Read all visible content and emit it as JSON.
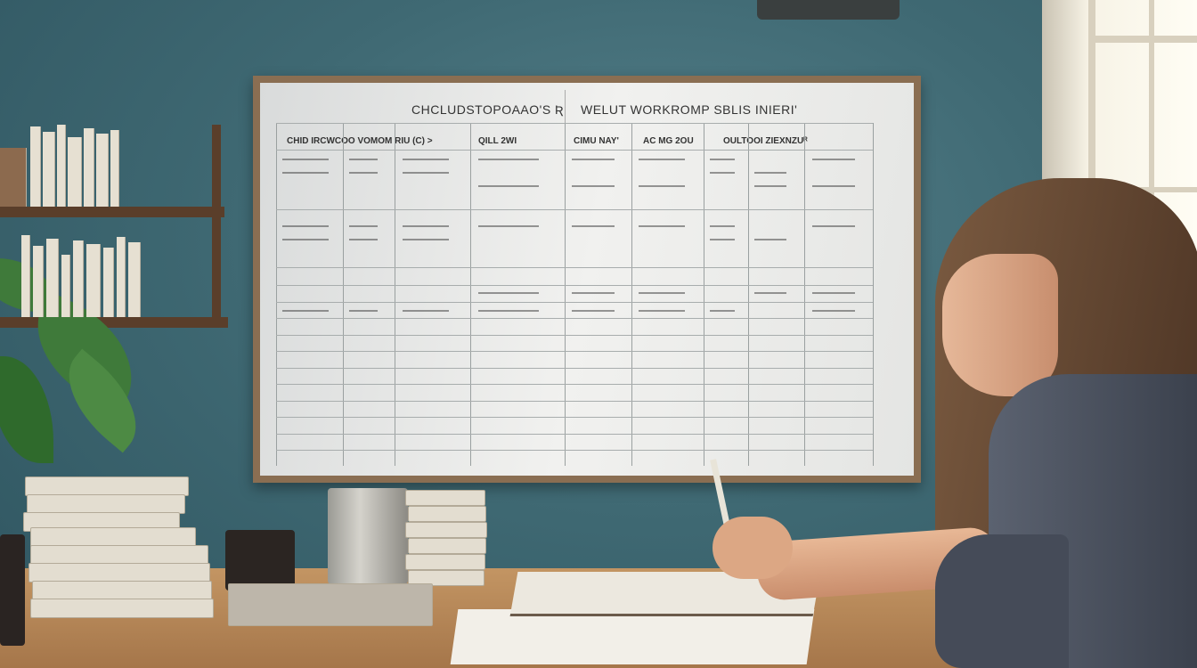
{
  "scene": {
    "description_tags": [
      "wall",
      "window",
      "whiteboard",
      "bookshelf",
      "plant",
      "desk",
      "student"
    ],
    "colors": {
      "wall": "#3f6973",
      "board_frame": "#8a6e52",
      "desk": "#b98a5a",
      "shirt": "#454b58"
    }
  },
  "whiteboard": {
    "title_left": "CHCLUDSTOPOAAO'S Ʀ",
    "title_right": "WELUT WORKROMP SBLIS INIERI'",
    "headers": [
      "CHID IRCWCOO VOMOM RIU (C) >",
      "QILL 2WI",
      "CIMU NAY'",
      "AC MG 2OU",
      "OULTOOI ZIEXNZUᴿ"
    ]
  }
}
